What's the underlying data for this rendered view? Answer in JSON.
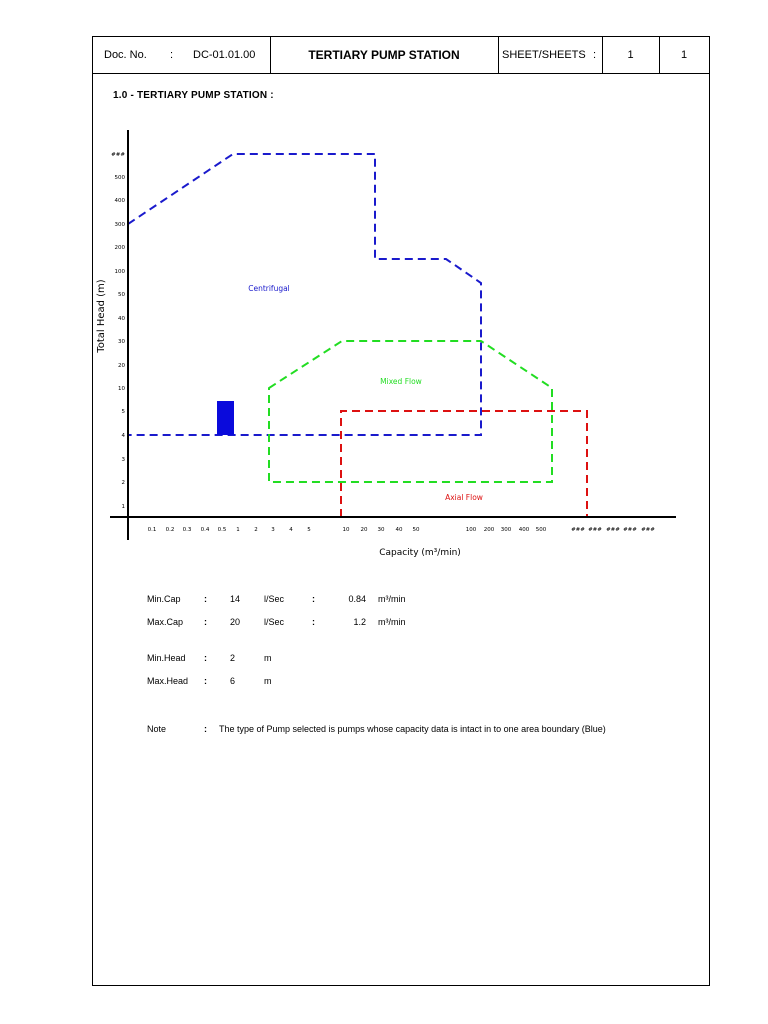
{
  "header": {
    "doc_label": "Doc. No.",
    "colon1": ":",
    "doc_number": "DC-01.01.00",
    "title": "TERTIARY PUMP STATION",
    "sheet_label": "SHEET/SHEETS",
    "colon2": ":",
    "sheet": "1",
    "sheets": "1"
  },
  "section": {
    "title": "1.0  - TERTIARY PUMP STATION  :"
  },
  "chart_data": {
    "type": "area",
    "xlabel": "Capacity (m³/min)",
    "ylabel": "Total Head (m)",
    "x_ticks": [
      "0.1",
      "0.2",
      "0.3",
      "0.4",
      "0.5",
      "1",
      "2",
      "3",
      "4",
      "5",
      "10",
      "20",
      "30",
      "40",
      "50",
      "100",
      "200",
      "300",
      "400",
      "500",
      "###",
      "###",
      "###",
      "###",
      "###"
    ],
    "y_ticks": [
      "1",
      "2",
      "3",
      "4",
      "5",
      "10",
      "20",
      "30",
      "40",
      "50",
      "100",
      "200",
      "300",
      "400",
      "500",
      "###"
    ],
    "regions": [
      {
        "name": "Centrifugal",
        "color": "#1a1acc"
      },
      {
        "name": "Mixed Flow",
        "color": "#22dd22"
      },
      {
        "name": "Axial Flow",
        "color": "#dd1111"
      }
    ],
    "selection": {
      "min_capacity": 0.84,
      "max_capacity": 1.2,
      "min_head": 2,
      "max_head": 6,
      "color": "#0a0adc"
    }
  },
  "specs": [
    {
      "label": "Min.Cap",
      "colon": ":",
      "value": "14",
      "unit": "l/Sec",
      "colon2": ":",
      "value2": "0.84",
      "unit2": "m³/min"
    },
    {
      "label": "Max.Cap",
      "colon": ":",
      "value": "20",
      "unit": "l/Sec",
      "colon2": ":",
      "value2": "1.2",
      "unit2": "m³/min"
    },
    {
      "label": "Min.Head",
      "colon": ":",
      "value": "2",
      "unit": "m"
    },
    {
      "label": "Max.Head",
      "colon": ":",
      "value": "6",
      "unit": "m"
    }
  ],
  "note": {
    "label": "Note",
    "colon": ":",
    "text": "The type of Pump selected is pumps whose capacity data is intact in to one area boundary (Blue)"
  }
}
